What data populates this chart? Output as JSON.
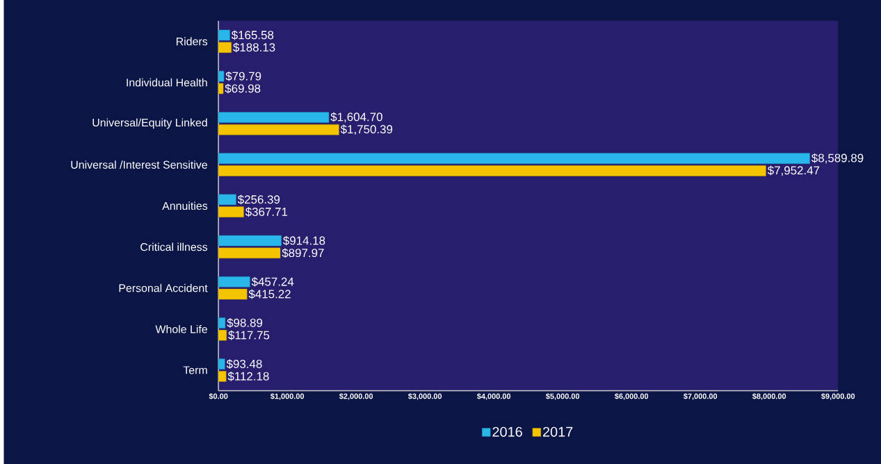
{
  "chart_data": {
    "type": "bar",
    "orientation": "horizontal",
    "categories": [
      "Riders",
      "Individual Health",
      "Universal/Equity Linked",
      "Universal /Interest Sensitive",
      "Annuities",
      "Critical illness",
      "Personal Accident",
      "Whole Life",
      "Term"
    ],
    "series": [
      {
        "name": "2016",
        "color": "#29b6e8",
        "values": [
          165.58,
          79.79,
          1604.7,
          8589.89,
          256.39,
          914.18,
          457.24,
          98.89,
          93.48
        ],
        "value_labels": [
          "$165.58",
          "$79.79",
          "$1,604.70",
          "$8,589.89",
          "$256.39",
          "$914.18",
          "$457.24",
          "$98.89",
          "$93.48"
        ]
      },
      {
        "name": "2017",
        "color": "#f5c400",
        "values": [
          188.13,
          69.98,
          1750.39,
          7952.47,
          367.71,
          897.97,
          415.22,
          117.75,
          112.18
        ],
        "value_labels": [
          "$188.13",
          "$69.98",
          "$1,750.39",
          "$7,952.47",
          "$367.71",
          "$897.97",
          "$415.22",
          "$117.75",
          "$112.18"
        ]
      }
    ],
    "xlim": [
      0,
      9000
    ],
    "xticks": [
      {
        "value": 0,
        "label": "$0.00"
      },
      {
        "value": 1000,
        "label": "$1,000.00"
      },
      {
        "value": 2000,
        "label": "$2,000.00"
      },
      {
        "value": 3000,
        "label": "$3,000.00"
      },
      {
        "value": 4000,
        "label": "$4,000.00"
      },
      {
        "value": 5000,
        "label": "$5,000.00"
      },
      {
        "value": 6000,
        "label": "$6,000.00"
      },
      {
        "value": 7000,
        "label": "$7,000.00"
      },
      {
        "value": 8000,
        "label": "$8,000.00"
      },
      {
        "value": 9000,
        "label": "$9,000.00"
      }
    ],
    "legend": "bottom"
  }
}
